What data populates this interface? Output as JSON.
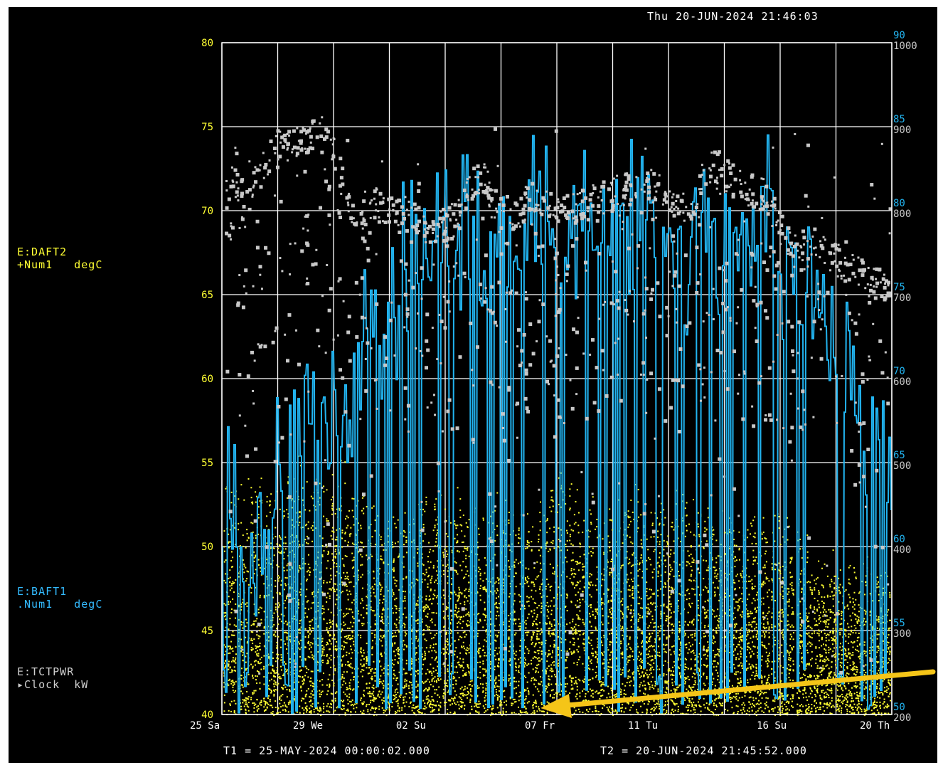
{
  "header": {
    "timestamp": "Thu 20-JUN-2024 21:46:03"
  },
  "legend": [
    {
      "name": "E:DAFT2",
      "sub": "+Num1   degC",
      "color": "#ffff33"
    },
    {
      "name": "E:BAFT1",
      "sub": ".Num1   degC",
      "color": "#33bbff"
    },
    {
      "name": "E:TCTPWR",
      "sub": "▸Clock  kW",
      "color": "#cfcfcf"
    }
  ],
  "footer": {
    "t1": "T1 = 25-MAY-2024 00:00:02.000",
    "t2": "T2 = 20-JUN-2024 21:45:52.000"
  },
  "colors": {
    "yellow": "#ffff33",
    "blue": "#22b4f0",
    "gray": "#c8c8c8",
    "grid": "#ffffff",
    "annotation_arrow": "#f5c518"
  },
  "chart_data": {
    "type": "scatter",
    "left_axis": {
      "ticks": [
        "80",
        "75",
        "70",
        "65",
        "60",
        "55",
        "50",
        "45",
        "40"
      ],
      "range": [
        40,
        80
      ]
    },
    "right_axis_inner": {
      "ticks": [
        "90",
        "85",
        "80",
        "75",
        "70",
        "65",
        "60",
        "55",
        "50"
      ],
      "range": [
        50,
        90
      ]
    },
    "right_axis_outer": {
      "ticks": [
        "1000",
        "900",
        "800",
        "700",
        "600",
        "500",
        "400",
        "300",
        "200"
      ],
      "range": [
        200,
        1000
      ]
    },
    "x_ticks": [
      "25 Sa",
      "29 We",
      "02 Su",
      "07 Fr",
      "11 Tu",
      "16 Su",
      "20 Th"
    ],
    "x_range_days": [
      "2024-05-25",
      "2024-06-20"
    ],
    "grid": true,
    "series": [
      {
        "name": "E:DAFT2",
        "axis": "left",
        "color": "#ffff33",
        "x": [
          "05-25",
          "05-26",
          "05-27",
          "05-28",
          "05-29",
          "05-30",
          "05-31",
          "06-01",
          "06-02",
          "06-03",
          "06-04",
          "06-05",
          "06-06",
          "06-07",
          "06-08",
          "06-09",
          "06-10",
          "06-11",
          "06-12",
          "06-13",
          "06-14",
          "06-15",
          "06-16",
          "06-17",
          "06-18",
          "06-19",
          "06-20"
        ],
        "y_max": [
          55.5,
          55,
          55,
          56,
          56,
          55.5,
          53,
          53,
          54,
          54,
          53.5,
          54,
          52,
          56,
          54,
          53.5,
          54,
          53.5,
          54,
          53,
          53,
          53,
          53,
          50,
          50,
          50,
          50
        ]
      },
      {
        "name": "E:BAFT1",
        "axis": "right_inner",
        "color": "#22b4f0",
        "x": [
          "05-25",
          "05-26",
          "05-27",
          "05-28",
          "05-29",
          "05-30",
          "05-31",
          "06-01",
          "06-02",
          "06-03",
          "06-04",
          "06-05",
          "06-06",
          "06-07",
          "06-08",
          "06-09",
          "06-10",
          "06-11",
          "06-12",
          "06-13",
          "06-14",
          "06-15",
          "06-16",
          "06-17",
          "06-18",
          "06-19",
          "06-20"
        ],
        "y_max": [
          69,
          65,
          71,
          73,
          73,
          75,
          79,
          82,
          83,
          84,
          84,
          86,
          86,
          86,
          84,
          86,
          86,
          84,
          83,
          85,
          86,
          85,
          83,
          80,
          78,
          73,
          72
        ]
      },
      {
        "name": "E:TCTPWR",
        "axis": "right_outer",
        "color": "#c8c8c8",
        "x": [
          "05-25",
          "05-26",
          "05-27",
          "05-28",
          "05-29",
          "05-30",
          "05-31",
          "06-01",
          "06-02",
          "06-03",
          "06-04",
          "06-05",
          "06-06",
          "06-07",
          "06-08",
          "06-09",
          "06-10",
          "06-11",
          "06-12",
          "06-13",
          "06-14",
          "06-15",
          "06-16",
          "06-17",
          "06-18",
          "06-19",
          "06-20"
        ],
        "y": [
          840,
          820,
          880,
          880,
          900,
          800,
          810,
          800,
          780,
          790,
          850,
          780,
          820,
          800,
          810,
          820,
          830,
          830,
          800,
          860,
          830,
          820,
          760,
          760,
          740,
          720,
          710
        ]
      }
    ]
  }
}
